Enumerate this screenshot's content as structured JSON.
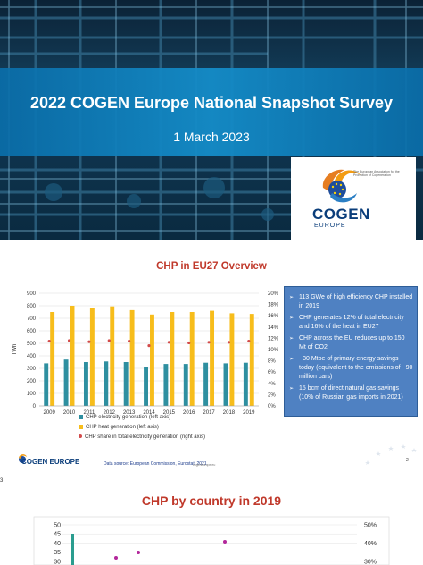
{
  "slide1": {
    "title": "2022 COGEN Europe National Snapshot Survey",
    "date": "1 March 2023",
    "logo": {
      "word": "COGEN",
      "sub": "EUROPE",
      "tagline": "The European Association for the Promotion of Cogeneration"
    }
  },
  "slide2": {
    "title": "CHP in EU27 Overview",
    "legend": [
      {
        "label": "CHP electricity generation (left axis)",
        "color": "#2e8fa0"
      },
      {
        "label": "CHP heat generation (left axis)",
        "color": "#f7bd1b"
      },
      {
        "label": "CHP share in total electricity generation (right axis)",
        "color": "#d24a4a"
      }
    ],
    "bullets": [
      "113 GWe of high efficiency CHP installed in 2019",
      "CHP generates 12%  of total electricity and 16% of the heat in EU27",
      "CHP across the EU reduces up to 150 Mt of CO2",
      "~30 Mtoe of primary energy savings today (equivalent to the emissions of ~90 million cars)",
      "15 bcm of direct natural gas savings (10% of Russian gas imports in 2021)"
    ],
    "source": "Data source: European Commission, Eurostat, 2021",
    "footer_logo": "COGEN EUROPE",
    "page_number": "2",
    "footer_url": "cogeneurope.eu"
  },
  "divider_mark": "3",
  "slide3": {
    "title": "CHP by country in 2019",
    "y_ticks_left": [
      "50",
      "45",
      "40",
      "35",
      "30"
    ],
    "y_ticks_right": [
      "50%",
      "40%",
      "30%"
    ]
  },
  "chart_data": [
    {
      "type": "bar",
      "title": "CHP in EU27 Overview",
      "ylabel": "TWh",
      "categories": [
        "2009",
        "2010",
        "2011",
        "2012",
        "2013",
        "2014",
        "2015",
        "2016",
        "2017",
        "2018",
        "2019"
      ],
      "series": [
        {
          "name": "CHP electricity generation (left axis)",
          "axis": "left",
          "values": [
            340,
            370,
            350,
            355,
            350,
            310,
            335,
            335,
            345,
            340,
            345
          ]
        },
        {
          "name": "CHP heat generation (left axis)",
          "axis": "left",
          "values": [
            750,
            800,
            785,
            795,
            765,
            730,
            750,
            750,
            760,
            740,
            735
          ]
        },
        {
          "name": "CHP share in total electricity generation (right axis)",
          "axis": "right",
          "type": "scatter",
          "values": [
            11.5,
            11.6,
            11.4,
            11.6,
            11.5,
            10.7,
            11.3,
            11.2,
            11.3,
            11.3,
            11.5
          ]
        }
      ],
      "ylim": [
        0,
        900
      ],
      "y_ticks": [
        0,
        100,
        200,
        300,
        400,
        500,
        600,
        700,
        800,
        900
      ],
      "y2lim": [
        0,
        20
      ],
      "y2_ticks": [
        "0%",
        "2%",
        "4%",
        "6%",
        "8%",
        "10%",
        "12%",
        "14%",
        "16%",
        "18%",
        "20%"
      ],
      "grid": true,
      "legend": "bottom"
    },
    {
      "type": "bar",
      "title": "CHP by country in 2019",
      "ylim_visible": [
        30,
        50
      ],
      "y2lim_visible": [
        30,
        50
      ]
    }
  ]
}
